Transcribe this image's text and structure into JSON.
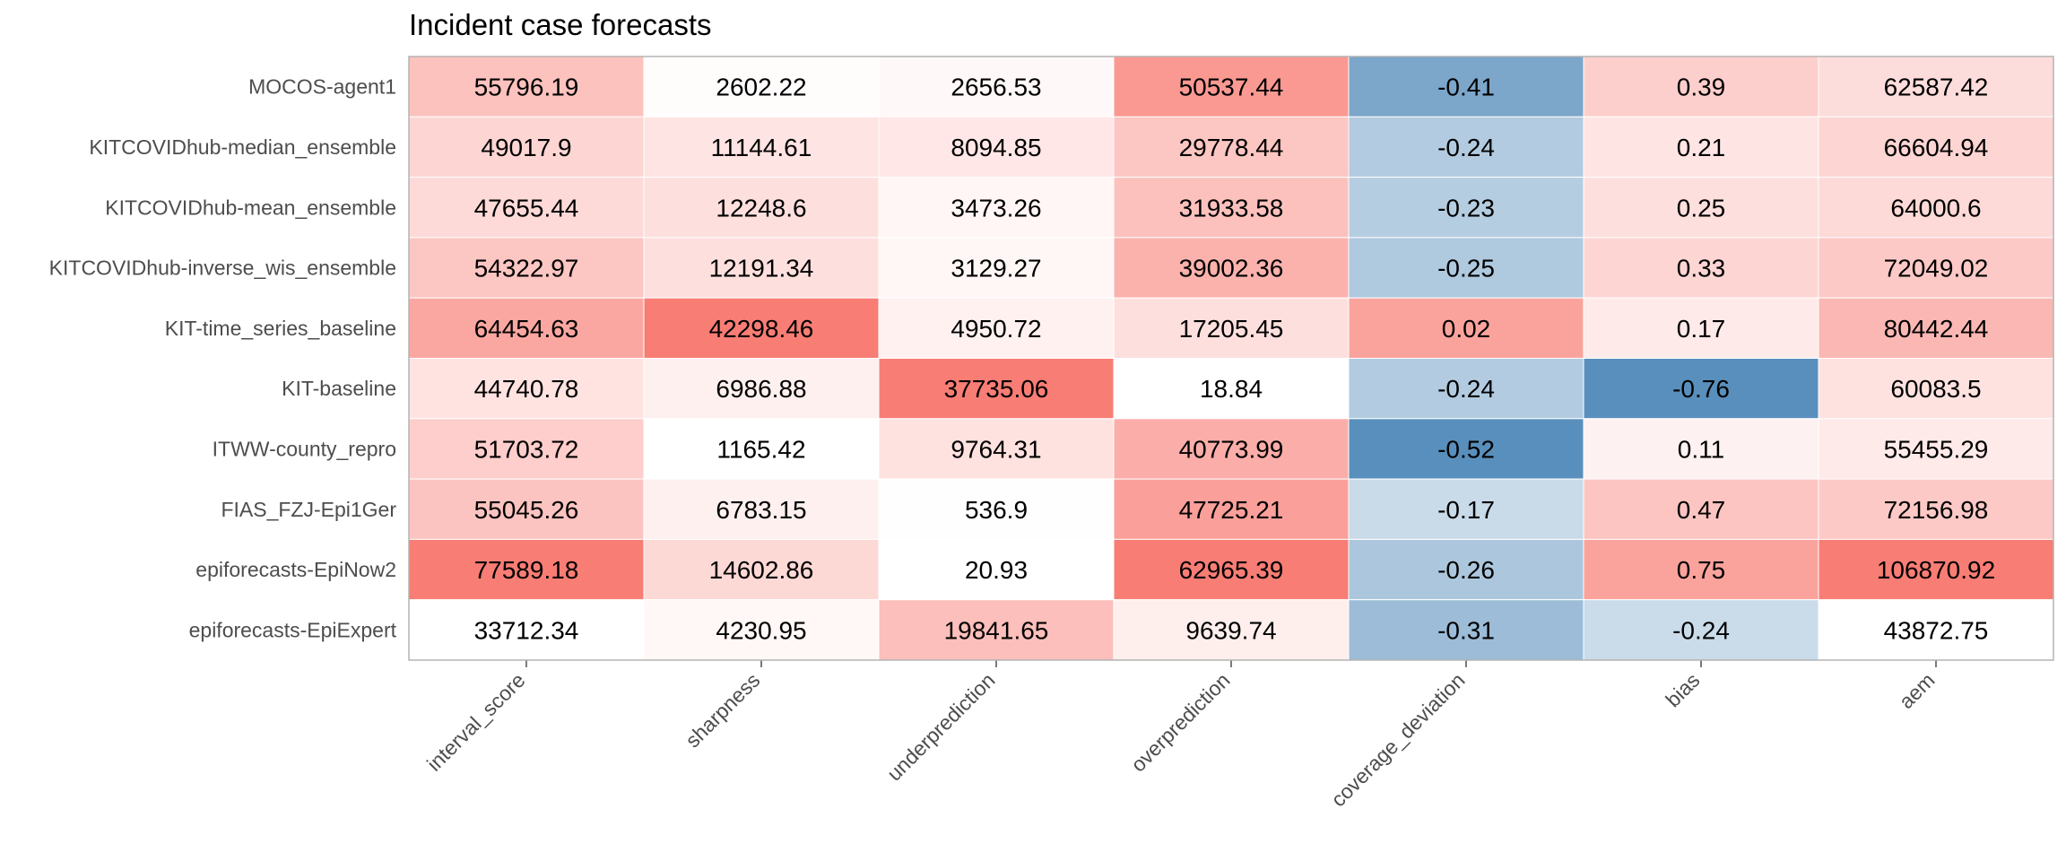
{
  "chart_data": {
    "type": "heatmap",
    "title": "Incident case forecasts",
    "xlabel": "",
    "ylabel": "",
    "columns": [
      "interval_score",
      "sharpness",
      "underprediction",
      "overprediction",
      "coverage_deviation",
      "bias",
      "aem"
    ],
    "rows": [
      "MOCOS-agent1",
      "KITCOVIDhub-median_ensemble",
      "KITCOVIDhub-mean_ensemble",
      "KITCOVIDhub-inverse_wis_ensemble",
      "KIT-time_series_baseline",
      "KIT-baseline",
      "ITWW-county_repro",
      "FIAS_FZJ-Epi1Ger",
      "epiforecasts-EpiNow2",
      "epiforecasts-EpiExpert"
    ],
    "values": [
      [
        "55796.19",
        "2602.22",
        "2656.53",
        "50537.44",
        "-0.41",
        "0.39",
        "62587.42"
      ],
      [
        "49017.9",
        "11144.61",
        "8094.85",
        "29778.44",
        "-0.24",
        "0.21",
        "66604.94"
      ],
      [
        "47655.44",
        "12248.6",
        "3473.26",
        "31933.58",
        "-0.23",
        "0.25",
        "64000.6"
      ],
      [
        "54322.97",
        "12191.34",
        "3129.27",
        "39002.36",
        "-0.25",
        "0.33",
        "72049.02"
      ],
      [
        "64454.63",
        "42298.46",
        "4950.72",
        "17205.45",
        "0.02",
        "0.17",
        "80442.44"
      ],
      [
        "44740.78",
        "6986.88",
        "37735.06",
        "18.84",
        "-0.24",
        "-0.76",
        "60083.5"
      ],
      [
        "51703.72",
        "1165.42",
        "9764.31",
        "40773.99",
        "-0.52",
        "0.11",
        "55455.29"
      ],
      [
        "55045.26",
        "6783.15",
        "536.9",
        "47725.21",
        "-0.17",
        "0.47",
        "72156.98"
      ],
      [
        "77589.18",
        "14602.86",
        "20.93",
        "62965.39",
        "-0.26",
        "0.75",
        "106870.92"
      ],
      [
        "33712.34",
        "4230.95",
        "19841.65",
        "9639.74",
        "-0.31",
        "-0.24",
        "43872.75"
      ]
    ],
    "legend": "none",
    "colors": {
      "high": "#f8766d",
      "mid": "#ffffff",
      "low": "#4682b4",
      "panel_border": "#b3b3b3",
      "cell_separator": "#ffffff",
      "axis_text": "#4d4d4d"
    }
  }
}
